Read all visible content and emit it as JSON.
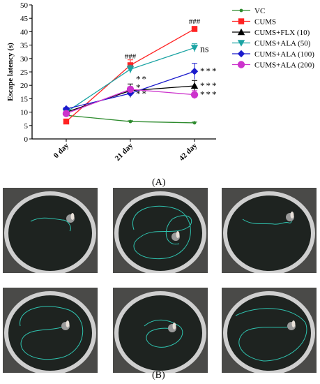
{
  "chart_data": {
    "type": "line",
    "ylabel": "Escape latency (s)",
    "xlabel": "",
    "categories": [
      "0 day",
      "21 day",
      "42 day"
    ],
    "ylim": [
      0,
      50
    ],
    "yticks": [
      0,
      5,
      10,
      15,
      20,
      25,
      30,
      35,
      40,
      45,
      50
    ],
    "grid": false,
    "legend_position": "right",
    "series": [
      {
        "name": "VC",
        "color": "#2e8b2e",
        "marker": "circle-small",
        "values": [
          8.8,
          6.5,
          6.0
        ],
        "errors": [
          0.3,
          0.3,
          0.3
        ]
      },
      {
        "name": "CUMS",
        "color": "#ff2222",
        "marker": "square",
        "values": [
          6.5,
          27.5,
          41.0
        ],
        "errors": [
          0.5,
          2.0,
          1.0
        ]
      },
      {
        "name": "CUMS+FLX (10)",
        "color": "#000000",
        "marker": "triangle-up",
        "values": [
          10.0,
          18.0,
          19.8
        ],
        "errors": [
          0.5,
          2.5,
          2.0
        ]
      },
      {
        "name": "CUMS+ALA (50)",
        "color": "#1aa3a3",
        "marker": "triangle-down",
        "values": [
          10.0,
          26.0,
          34.0
        ],
        "errors": [
          0.5,
          1.5,
          1.5
        ]
      },
      {
        "name": "CUMS+ALA (100)",
        "color": "#1a1acc",
        "marker": "diamond",
        "values": [
          11.2,
          17.0,
          25.2
        ],
        "errors": [
          0.5,
          1.0,
          3.0
        ]
      },
      {
        "name": "CUMS+ALA (200)",
        "color": "#cc33cc",
        "marker": "circle",
        "values": [
          9.5,
          18.5,
          16.5
        ],
        "errors": [
          0.5,
          1.0,
          1.5
        ]
      }
    ],
    "annotations": [
      {
        "text": "###",
        "category": "21 day",
        "y": 31.0
      },
      {
        "text": "###",
        "category": "42 day",
        "y": 44.0
      },
      {
        "text": "ns",
        "category": "42 day",
        "y": 33.5
      },
      {
        "text": "**",
        "category": "21 day",
        "y": 22.3
      },
      {
        "text": "*",
        "category": "21 day",
        "y": 19.2
      },
      {
        "text": "**",
        "category": "21 day",
        "y": 16.8
      },
      {
        "text": "***",
        "category": "42 day",
        "y": 25.2
      },
      {
        "text": "***",
        "category": "42 day",
        "y": 19.8
      },
      {
        "text": "***",
        "category": "42 day",
        "y": 16.5
      }
    ]
  },
  "panel_a_label": "(A)",
  "panel_b_label": "(B)"
}
